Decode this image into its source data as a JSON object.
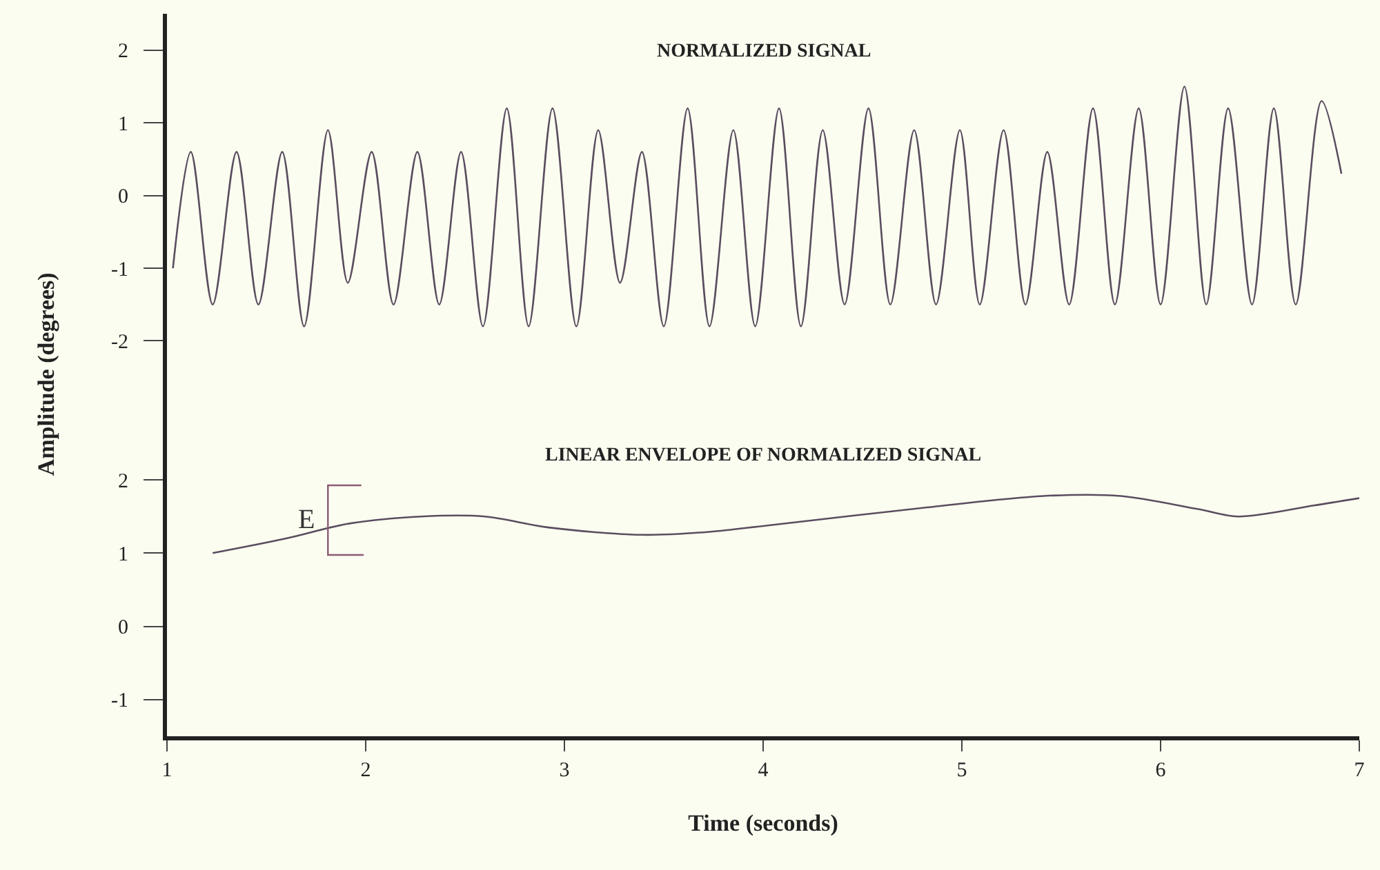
{
  "chart_data": [
    {
      "type": "line",
      "title": "NORMALIZED SIGNAL",
      "x": [
        1.03,
        1.12,
        1.23,
        1.35,
        1.46,
        1.58,
        1.69,
        1.81,
        1.91,
        2.03,
        2.14,
        2.26,
        2.37,
        2.48,
        2.59,
        2.71,
        2.82,
        2.94,
        3.06,
        3.17,
        3.28,
        3.39,
        3.5,
        3.62,
        3.73,
        3.85,
        3.96,
        4.08,
        4.19,
        4.3,
        4.41,
        4.53,
        4.64,
        4.76,
        4.87,
        4.99,
        5.09,
        5.21,
        5.32,
        5.43,
        5.54,
        5.66,
        5.77,
        5.89,
        6.0,
        6.12,
        6.23,
        6.34,
        6.46,
        6.57,
        6.68,
        6.81,
        6.91
      ],
      "series": [
        {
          "color": "#5a4d60",
          "values": [
            -1.0,
            0.6,
            -1.5,
            0.6,
            -1.5,
            0.6,
            -1.8,
            0.9,
            -1.2,
            0.6,
            -1.5,
            0.6,
            -1.5,
            0.6,
            -1.8,
            1.2,
            -1.8,
            1.2,
            -1.8,
            0.9,
            -1.2,
            0.6,
            -1.8,
            1.2,
            -1.8,
            0.9,
            -1.8,
            1.2,
            -1.8,
            0.9,
            -1.5,
            1.2,
            -1.5,
            0.9,
            -1.5,
            0.9,
            -1.5,
            0.9,
            -1.5,
            0.6,
            -1.5,
            1.2,
            -1.5,
            1.2,
            -1.5,
            1.5,
            -1.5,
            1.2,
            -1.5,
            1.2,
            -1.5,
            1.3,
            0.3
          ]
        }
      ],
      "xlim": [
        1,
        7
      ],
      "ylim": [
        -2.4,
        2.5
      ],
      "yticks": [
        -2,
        -1,
        0,
        1,
        2
      ],
      "tick_labels": "y",
      "grid": false
    },
    {
      "type": "line",
      "title": "LINEAR ENVELOPE OF NORMALIZED SIGNAL",
      "xlabel": "Time (seconds)",
      "ylabel": "Amplitude (degrees)",
      "x": [
        1.23,
        1.6,
        1.91,
        2.28,
        2.6,
        2.92,
        3.39,
        3.73,
        4.03,
        4.81,
        5.41,
        5.8,
        6.19,
        6.39,
        6.77,
        7.0
      ],
      "series": [
        {
          "color": "#5a4d60",
          "values": [
            1.0,
            1.2,
            1.4,
            1.5,
            1.5,
            1.35,
            1.25,
            1.29,
            1.38,
            1.62,
            1.78,
            1.78,
            1.6,
            1.5,
            1.65,
            1.75
          ]
        }
      ],
      "annotations": [
        "E"
      ],
      "xlim": [
        1,
        7
      ],
      "xticks": [
        1,
        2,
        3,
        4,
        5,
        6,
        7
      ],
      "ylim": [
        -1.5,
        3.5
      ],
      "yticks": [
        -1,
        0,
        1,
        2
      ],
      "grid": false
    }
  ]
}
